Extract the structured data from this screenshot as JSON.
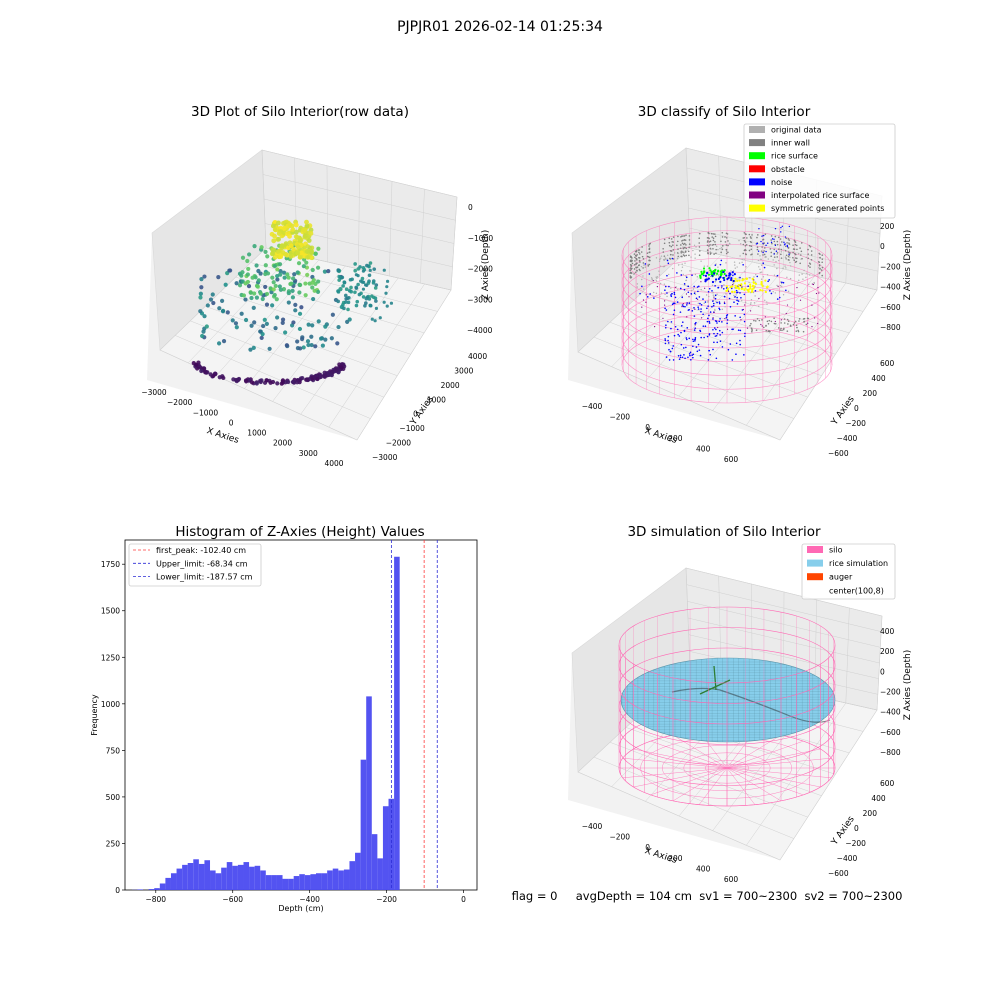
{
  "suptitle": "PJPJR01 2026-02-14 01:25:34",
  "status_text": "flag = 0     avgDepth = 104 cm  sv1 = 700~2300  sv2 = 700~2300",
  "colors": {
    "histogram_bar": "#4a4af0",
    "first_peak_line": "#ff3b3b",
    "limit_line": "#2b2bd6",
    "silo": "#ff69b4",
    "rice_simulation": "#87ceeb",
    "auger": "#ff4500",
    "original_data": "#b0b0b0",
    "inner_wall": "#808080",
    "rice_surface": "#00ff00",
    "obstacle": "#ff0000",
    "noise": "#0000ff",
    "interpolated_rice_surface": "#800080",
    "symmetric_generated_points": "#ffff00"
  },
  "chart_data": [
    {
      "type": "scatter",
      "title": "3D Plot of Silo Interior(row data)",
      "xlabel": "X Axies",
      "ylabel": "Y Axies",
      "zlabel": "Z Axies (Depth)",
      "x_ticks": [
        "−3000",
        "−2000",
        "−1000",
        "0",
        "1000",
        "2000",
        "3000",
        "4000"
      ],
      "y_ticks": [
        "−3000",
        "−2000",
        "−1000",
        "0",
        "1000",
        "2000",
        "3000",
        "4000"
      ],
      "z_ticks": [
        "0",
        "−1000",
        "−2000",
        "−3000",
        "−4000"
      ],
      "colormap": "viridis by depth",
      "clusters": [
        {
          "part": "top cluster",
          "x": -200,
          "y": 800,
          "z": -800
        },
        {
          "part": "upper scatter",
          "x": -600,
          "y": 500,
          "z": -1800
        },
        {
          "part": "mid scatter",
          "x": 0,
          "y": 0,
          "z": -2600
        },
        {
          "part": "right rack",
          "x": 2800,
          "y": 1500,
          "z": -2600
        },
        {
          "part": "bottom ring",
          "x": 0,
          "y": -1500,
          "z": -4200
        }
      ]
    },
    {
      "type": "scatter",
      "title": "3D classify of Silo Interior",
      "xlabel": "X Axies",
      "ylabel": "Y Axies",
      "zlabel": "Z Axies (Depth)",
      "x_ticks": [
        "−400",
        "−200",
        "0",
        "200",
        "400",
        "600"
      ],
      "y_ticks": [
        "−600",
        "−400",
        "−200",
        "0",
        "200",
        "400",
        "600"
      ],
      "z_ticks": [
        "200",
        "0",
        "−200",
        "−400",
        "−600",
        "−800"
      ],
      "legend": [
        "original data",
        "inner wall",
        "rice surface",
        "obstacle",
        "noise",
        "interpolated rice surface",
        "symmetric generated points"
      ],
      "legend_loc": "top-right"
    },
    {
      "type": "bar",
      "title": "Histogram of Z-Axies (Height) Values",
      "xlabel": "Depth (cm)",
      "ylabel": "Frequency",
      "xlim": [
        -880,
        35
      ],
      "ylim": [
        0,
        1880
      ],
      "x_ticks": [
        -800,
        -600,
        -400,
        -200,
        0
      ],
      "x_tick_labels": [
        "−800",
        "−600",
        "−400",
        "−200",
        "0"
      ],
      "y_ticks": [
        0,
        250,
        500,
        750,
        1000,
        1250,
        1500,
        1750
      ],
      "bin_start": -862,
      "bin_width": 14.5,
      "values": [
        1,
        3,
        0,
        5,
        10,
        35,
        65,
        90,
        115,
        135,
        145,
        165,
        140,
        160,
        105,
        90,
        120,
        150,
        130,
        135,
        150,
        125,
        130,
        105,
        80,
        80,
        80,
        60,
        60,
        75,
        85,
        80,
        85,
        90,
        90,
        105,
        115,
        105,
        110,
        155,
        200,
        700,
        1040,
        300,
        170,
        450,
        490,
        1790
      ],
      "vlines": [
        {
          "label": "first_peak: -102.40 cm",
          "x": -102.4,
          "color": "first_peak_line"
        },
        {
          "label": "Upper_limit: -68.34 cm",
          "x": -68.34,
          "color": "limit_line"
        },
        {
          "label": "Lower_limit: -187.57 cm",
          "x": -187.57,
          "color": "limit_line"
        }
      ],
      "legend_loc": "top-left"
    },
    {
      "type": "surface",
      "title": "3D simulation of Silo Interior",
      "xlabel": "X Axies",
      "ylabel": "Y Axies",
      "zlabel": "Z Axies (Depth)",
      "x_ticks": [
        "−400",
        "−200",
        "0",
        "200",
        "400",
        "600"
      ],
      "y_ticks": [
        "−600",
        "−400",
        "−200",
        "0",
        "200",
        "400",
        "600"
      ],
      "z_ticks": [
        "400",
        "200",
        "0",
        "−200",
        "−400",
        "−600",
        "−800"
      ],
      "legend": [
        "silo",
        "rice simulation",
        "auger",
        "center(100,8)"
      ],
      "legend_loc": "top-right"
    }
  ]
}
